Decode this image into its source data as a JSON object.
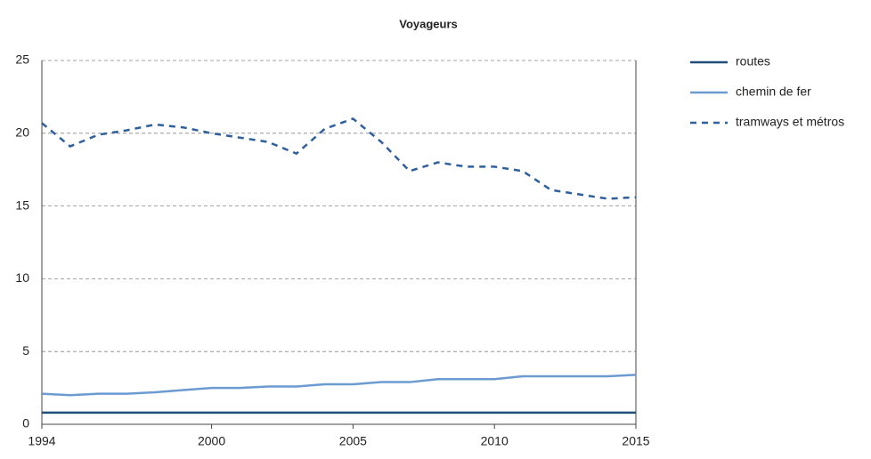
{
  "chart_data": {
    "type": "line",
    "title": "Voyageurs",
    "x": [
      1994,
      1995,
      1996,
      1997,
      1998,
      1999,
      2000,
      2001,
      2002,
      2003,
      2004,
      2005,
      2006,
      2007,
      2008,
      2009,
      2010,
      2011,
      2012,
      2013,
      2014,
      2015
    ],
    "series": [
      {
        "name": "routes",
        "color": "#1f4e79",
        "dash": false,
        "values": [
          0.8,
          0.8,
          0.8,
          0.8,
          0.8,
          0.8,
          0.8,
          0.8,
          0.8,
          0.8,
          0.8,
          0.8,
          0.8,
          0.8,
          0.8,
          0.8,
          0.8,
          0.8,
          0.8,
          0.8,
          0.8,
          0.8
        ]
      },
      {
        "name": "chemin de fer",
        "color": "#6b9bd1",
        "dash": false,
        "values": [
          2.1,
          2.0,
          2.1,
          2.1,
          2.2,
          2.35,
          2.5,
          2.5,
          2.6,
          2.6,
          2.75,
          2.75,
          2.9,
          2.9,
          3.1,
          3.1,
          3.1,
          3.3,
          3.3,
          3.3,
          3.3,
          3.4
        ]
      },
      {
        "name": "tramways et métros",
        "color": "#2e5f9e",
        "dash": true,
        "values": [
          20.7,
          19.1,
          19.9,
          20.2,
          20.6,
          20.4,
          20.0,
          19.7,
          19.4,
          18.6,
          20.3,
          21.0,
          19.4,
          17.4,
          18.0,
          17.7,
          17.7,
          17.4,
          16.1,
          15.8,
          15.5,
          15.6
        ]
      }
    ],
    "xlim": [
      1994,
      2015
    ],
    "xticks": [
      1994,
      2000,
      2005,
      2010,
      2015
    ],
    "ylim": [
      0,
      25
    ],
    "yticks": [
      0,
      5,
      10,
      15,
      20,
      25
    ],
    "grid": true
  }
}
